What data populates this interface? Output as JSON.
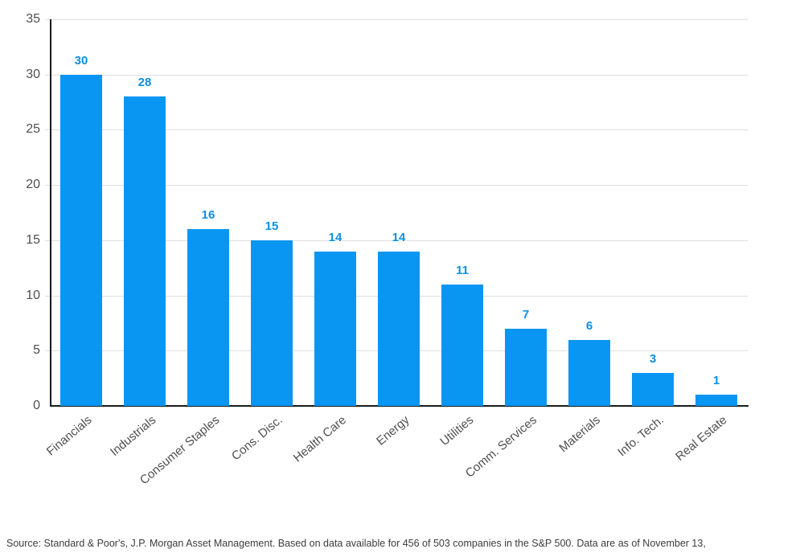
{
  "chart_data": {
    "type": "bar",
    "title": "",
    "categories": [
      "Financials",
      "Industrials",
      "Consumer Staples",
      "Cons. Disc.",
      "Health Care",
      "Energy",
      "Utilities",
      "Comm. Services",
      "Materials",
      "Info. Tech.",
      "Real Estate"
    ],
    "values": [
      30,
      28,
      16,
      15,
      14,
      14,
      11,
      7,
      6,
      3,
      1
    ],
    "xlabel": "",
    "ylabel": "",
    "ylim": [
      0,
      35
    ],
    "yticks": [
      0,
      5,
      10,
      15,
      20,
      25,
      30,
      35
    ],
    "grid": "horizontal",
    "legend": "none",
    "colors": {
      "bar": "#0996f3",
      "value_label": "#0d8fe4",
      "axis_tick_label": "#4f4f4f",
      "gridline": "#dedede",
      "axis_line": "#1a1a1a"
    }
  },
  "footer": {
    "source_text": "Source: Standard & Poor's, J.P. Morgan Asset Management. Based on data available for 456 of 503 companies in the S&P 500. Data are as of November 13,"
  }
}
